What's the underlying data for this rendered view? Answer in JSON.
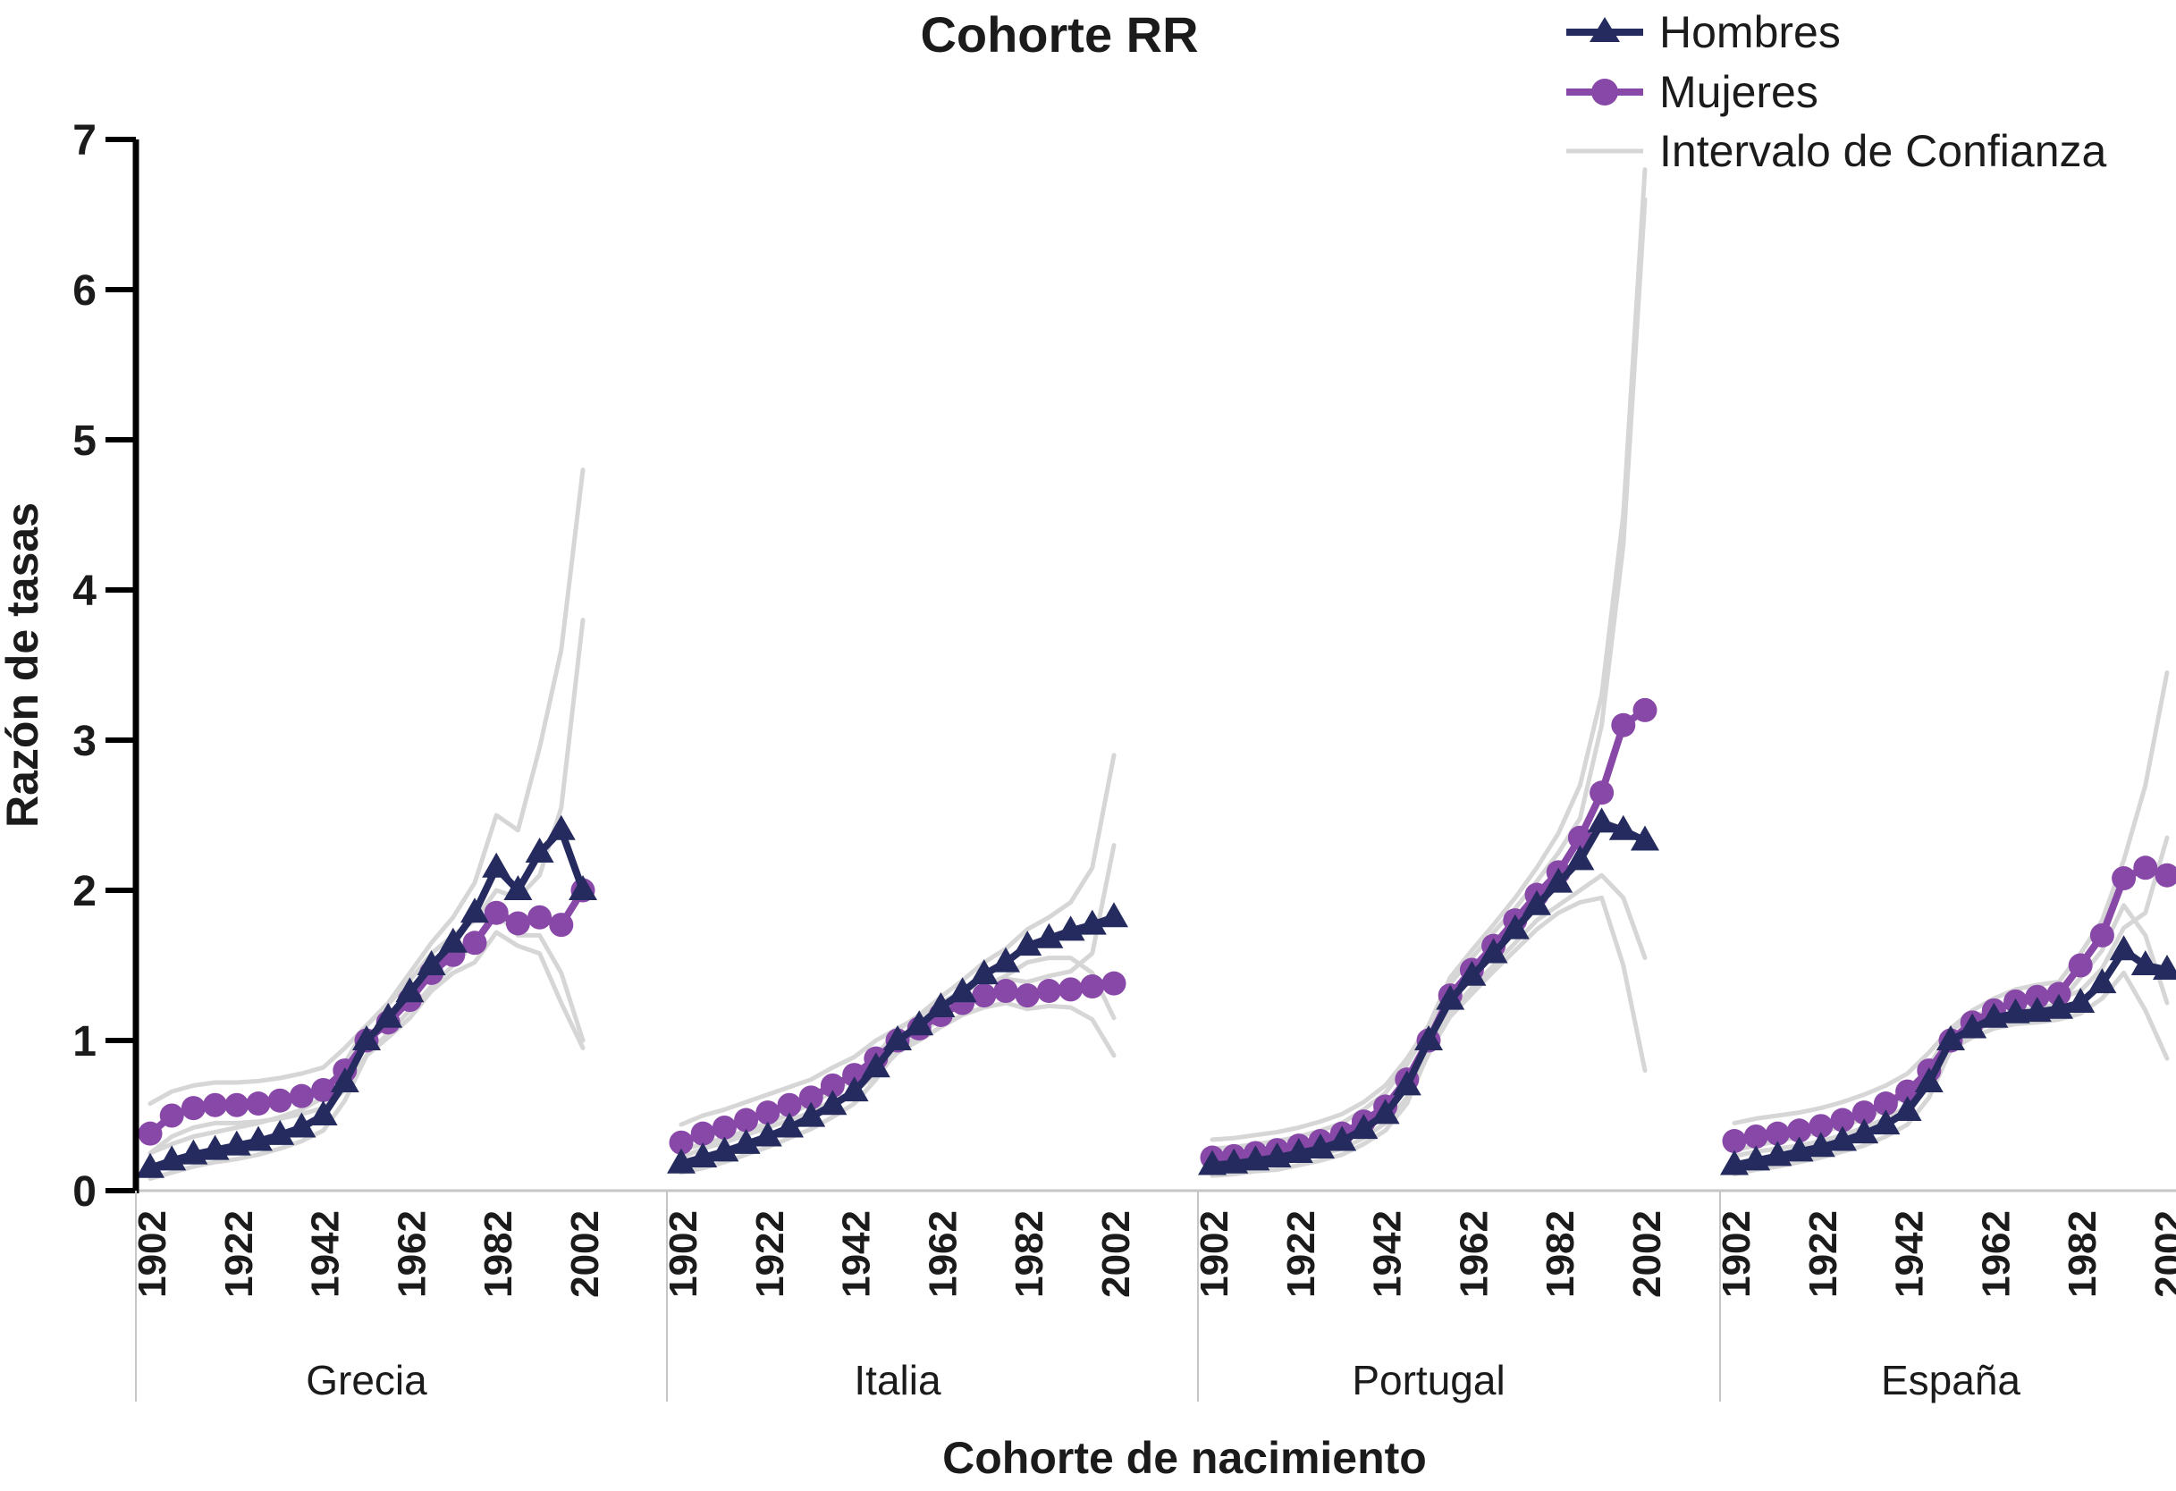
{
  "title": "Cohorte RR",
  "legend": [
    {
      "label": "Hombres",
      "marker": "triangle-line-icon",
      "series": "hombres"
    },
    {
      "label": "Mujeres",
      "marker": "circle-line-icon",
      "series": "mujeres"
    },
    {
      "label": "Intervalo de Confianza",
      "marker": "gray-line-icon",
      "series": "ci"
    }
  ],
  "y_axis": {
    "title": "Razón de tasas",
    "min": 0,
    "max": 7,
    "ticks": [
      0,
      1,
      2,
      3,
      4,
      5,
      6,
      7
    ]
  },
  "x_axis": {
    "title": "Cohorte de nacimiento",
    "tick_labels": [
      "1902",
      "1922",
      "1942",
      "1962",
      "1982",
      "2002"
    ]
  },
  "colors": {
    "hombres": "#252b5e",
    "mujeres": "#8848a8",
    "ci": "#d6d6d6",
    "axis": "#000000",
    "separator": "#c6c6c6",
    "text": "#1b1b1b"
  },
  "chart_data": {
    "type": "line",
    "x": [
      1902,
      1907,
      1912,
      1917,
      1922,
      1927,
      1932,
      1937,
      1942,
      1947,
      1952,
      1957,
      1962,
      1967,
      1972,
      1977,
      1982,
      1987,
      1992,
      1997,
      2002
    ],
    "ylim": [
      0,
      7
    ],
    "legend_position": "top-right",
    "grid": false,
    "panels": [
      {
        "name": "Grecia",
        "id": "grecia",
        "series": {
          "hombres": [
            0.15,
            0.2,
            0.24,
            0.27,
            0.3,
            0.33,
            0.37,
            0.42,
            0.5,
            0.72,
            1.0,
            1.15,
            1.32,
            1.5,
            1.65,
            1.85,
            2.15,
            2.0,
            2.25,
            2.4,
            2.0
          ],
          "mujeres": [
            0.38,
            0.5,
            0.55,
            0.57,
            0.57,
            0.58,
            0.6,
            0.63,
            0.67,
            0.8,
            1.0,
            1.12,
            1.27,
            1.45,
            1.57,
            1.65,
            1.85,
            1.78,
            1.82,
            1.77,
            2.0
          ]
        },
        "ci": {
          "hombres_upper": [
            0.25,
            0.31,
            0.36,
            0.39,
            0.42,
            0.45,
            0.49,
            0.54,
            0.62,
            0.85,
            1.1,
            1.25,
            1.45,
            1.65,
            1.82,
            2.05,
            2.5,
            2.4,
            2.95,
            3.6,
            4.8
          ],
          "hombres_lower": [
            0.08,
            0.12,
            0.16,
            0.19,
            0.21,
            0.24,
            0.28,
            0.33,
            0.4,
            0.6,
            0.9,
            1.05,
            1.2,
            1.36,
            1.5,
            1.65,
            1.85,
            1.7,
            1.7,
            1.45,
            1.0
          ],
          "mujeres_upper": [
            0.58,
            0.66,
            0.7,
            0.72,
            0.72,
            0.73,
            0.75,
            0.78,
            0.82,
            0.95,
            1.1,
            1.24,
            1.4,
            1.58,
            1.7,
            1.8,
            2.0,
            1.95,
            2.1,
            2.55,
            3.8
          ],
          "mujeres_lower": [
            0.25,
            0.36,
            0.42,
            0.45,
            0.45,
            0.46,
            0.48,
            0.51,
            0.55,
            0.67,
            0.9,
            1.02,
            1.15,
            1.33,
            1.45,
            1.52,
            1.72,
            1.63,
            1.58,
            1.25,
            0.95
          ]
        }
      },
      {
        "name": "Italia",
        "id": "italia",
        "series": {
          "hombres": [
            0.18,
            0.22,
            0.26,
            0.31,
            0.36,
            0.42,
            0.49,
            0.57,
            0.66,
            0.82,
            1.0,
            1.1,
            1.22,
            1.32,
            1.44,
            1.52,
            1.63,
            1.68,
            1.73,
            1.77,
            1.82
          ],
          "mujeres": [
            0.32,
            0.38,
            0.42,
            0.47,
            0.52,
            0.57,
            0.62,
            0.7,
            0.77,
            0.88,
            1.0,
            1.08,
            1.17,
            1.25,
            1.3,
            1.33,
            1.3,
            1.33,
            1.34,
            1.36,
            1.38
          ]
        },
        "ci": {
          "hombres_upper": [
            0.27,
            0.31,
            0.35,
            0.4,
            0.45,
            0.51,
            0.58,
            0.66,
            0.75,
            0.9,
            1.07,
            1.17,
            1.29,
            1.4,
            1.52,
            1.61,
            1.74,
            1.82,
            1.92,
            2.15,
            2.9
          ],
          "hombres_lower": [
            0.12,
            0.15,
            0.19,
            0.24,
            0.29,
            0.35,
            0.41,
            0.49,
            0.58,
            0.74,
            0.94,
            1.04,
            1.15,
            1.25,
            1.36,
            1.43,
            1.52,
            1.55,
            1.55,
            1.45,
            1.15
          ],
          "mujeres_upper": [
            0.44,
            0.5,
            0.54,
            0.59,
            0.64,
            0.69,
            0.74,
            0.82,
            0.89,
            1.0,
            1.08,
            1.16,
            1.25,
            1.33,
            1.38,
            1.41,
            1.39,
            1.43,
            1.46,
            1.58,
            2.3
          ],
          "mujeres_lower": [
            0.22,
            0.28,
            0.32,
            0.37,
            0.42,
            0.47,
            0.52,
            0.6,
            0.66,
            0.77,
            0.92,
            1.0,
            1.09,
            1.17,
            1.22,
            1.25,
            1.21,
            1.23,
            1.22,
            1.14,
            0.9
          ]
        }
      },
      {
        "name": "Portugal",
        "id": "portugal",
        "series": {
          "hombres": [
            0.17,
            0.18,
            0.2,
            0.22,
            0.25,
            0.28,
            0.33,
            0.41,
            0.51,
            0.7,
            1.0,
            1.27,
            1.43,
            1.58,
            1.74,
            1.9,
            2.05,
            2.2,
            2.45,
            2.4,
            2.33
          ],
          "mujeres": [
            0.22,
            0.23,
            0.25,
            0.27,
            0.3,
            0.33,
            0.38,
            0.46,
            0.56,
            0.74,
            1.0,
            1.3,
            1.47,
            1.63,
            1.8,
            1.97,
            2.12,
            2.35,
            2.65,
            3.1,
            3.2
          ]
        },
        "ci": {
          "hombres_upper": [
            0.28,
            0.29,
            0.31,
            0.33,
            0.36,
            0.4,
            0.45,
            0.54,
            0.65,
            0.84,
            1.08,
            1.38,
            1.55,
            1.72,
            1.88,
            2.06,
            2.25,
            2.48,
            3.1,
            4.3,
            6.6
          ],
          "hombres_lower": [
            0.1,
            0.11,
            0.13,
            0.14,
            0.17,
            0.2,
            0.24,
            0.31,
            0.4,
            0.58,
            0.92,
            1.16,
            1.31,
            1.46,
            1.6,
            1.74,
            1.85,
            1.92,
            1.95,
            1.5,
            0.8
          ],
          "mujeres_upper": [
            0.34,
            0.35,
            0.37,
            0.39,
            0.42,
            0.46,
            0.51,
            0.59,
            0.7,
            0.88,
            1.1,
            1.42,
            1.6,
            1.77,
            1.95,
            2.15,
            2.38,
            2.7,
            3.3,
            4.5,
            6.8
          ],
          "mujeres_lower": [
            0.14,
            0.15,
            0.17,
            0.18,
            0.21,
            0.24,
            0.28,
            0.35,
            0.45,
            0.62,
            0.91,
            1.19,
            1.35,
            1.5,
            1.65,
            1.8,
            1.9,
            2.0,
            2.1,
            1.95,
            1.55
          ]
        }
      },
      {
        "name": "España",
        "id": "espana",
        "series": {
          "hombres": [
            0.17,
            0.2,
            0.23,
            0.26,
            0.29,
            0.33,
            0.38,
            0.44,
            0.53,
            0.72,
            1.0,
            1.08,
            1.15,
            1.18,
            1.19,
            1.21,
            1.25,
            1.38,
            1.6,
            1.5,
            1.47
          ],
          "mujeres": [
            0.33,
            0.36,
            0.38,
            0.4,
            0.43,
            0.47,
            0.52,
            0.58,
            0.66,
            0.8,
            1.0,
            1.12,
            1.2,
            1.26,
            1.29,
            1.31,
            1.5,
            1.7,
            2.08,
            2.15,
            2.1
          ]
        },
        "ci": {
          "hombres_upper": [
            0.27,
            0.3,
            0.33,
            0.36,
            0.39,
            0.43,
            0.48,
            0.55,
            0.64,
            0.83,
            1.07,
            1.15,
            1.22,
            1.25,
            1.26,
            1.28,
            1.33,
            1.48,
            1.75,
            1.85,
            2.35
          ],
          "hombres_lower": [
            0.11,
            0.14,
            0.16,
            0.19,
            0.22,
            0.26,
            0.3,
            0.36,
            0.44,
            0.62,
            0.94,
            1.02,
            1.08,
            1.11,
            1.12,
            1.14,
            1.18,
            1.28,
            1.45,
            1.2,
            0.88
          ],
          "mujeres_upper": [
            0.45,
            0.48,
            0.5,
            0.52,
            0.55,
            0.59,
            0.64,
            0.7,
            0.78,
            0.92,
            1.08,
            1.2,
            1.28,
            1.34,
            1.37,
            1.39,
            1.58,
            1.8,
            2.2,
            2.7,
            3.45
          ],
          "mujeres_lower": [
            0.23,
            0.26,
            0.28,
            0.3,
            0.33,
            0.37,
            0.42,
            0.48,
            0.56,
            0.7,
            0.93,
            1.05,
            1.13,
            1.19,
            1.22,
            1.24,
            1.42,
            1.6,
            1.9,
            1.7,
            1.25
          ]
        }
      }
    ]
  }
}
